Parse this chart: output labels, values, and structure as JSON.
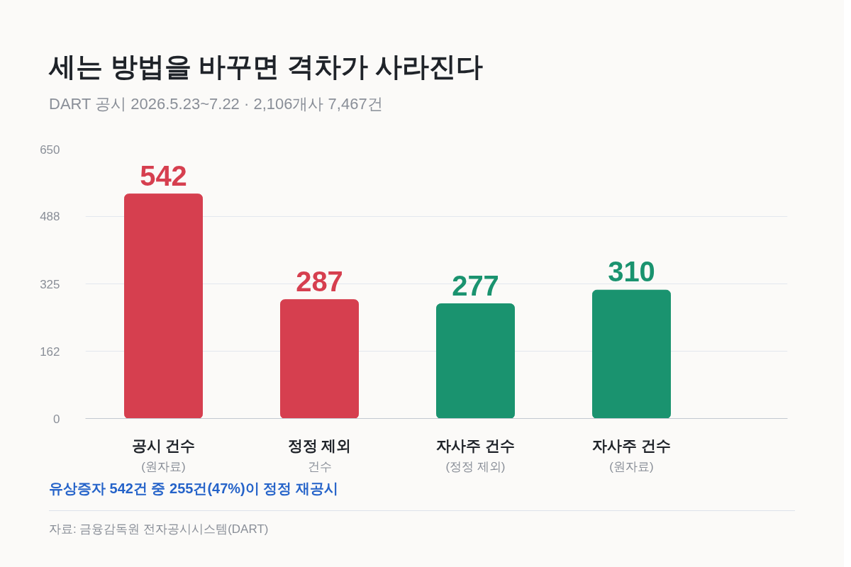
{
  "chart_data": {
    "type": "bar",
    "title": "세는 방법을 바꾸면 격차가 사라진다",
    "subtitle": "DART 공시 2026.5.23~7.22 · 2,106개사 7,467건",
    "categories": [
      "공시 건수\n(원자료)",
      "정정 제외\n건수",
      "자사주 건수\n(정정 제외)",
      "자사주 건수\n(원자료)"
    ],
    "values": [
      542,
      287,
      277,
      310
    ],
    "colors": [
      "#d63f4f",
      "#d63f4f",
      "#1a936f",
      "#1a936f"
    ],
    "ylim": [
      0,
      650
    ],
    "yticks": [
      0,
      162,
      325,
      488,
      650
    ],
    "grid": "y",
    "data_labels": true,
    "annotations": [
      "유상증자 542건 중 255건(47%)이 정정 재공시",
      "자료: 금융감독원 전자공시시스템(DART)"
    ]
  }
}
